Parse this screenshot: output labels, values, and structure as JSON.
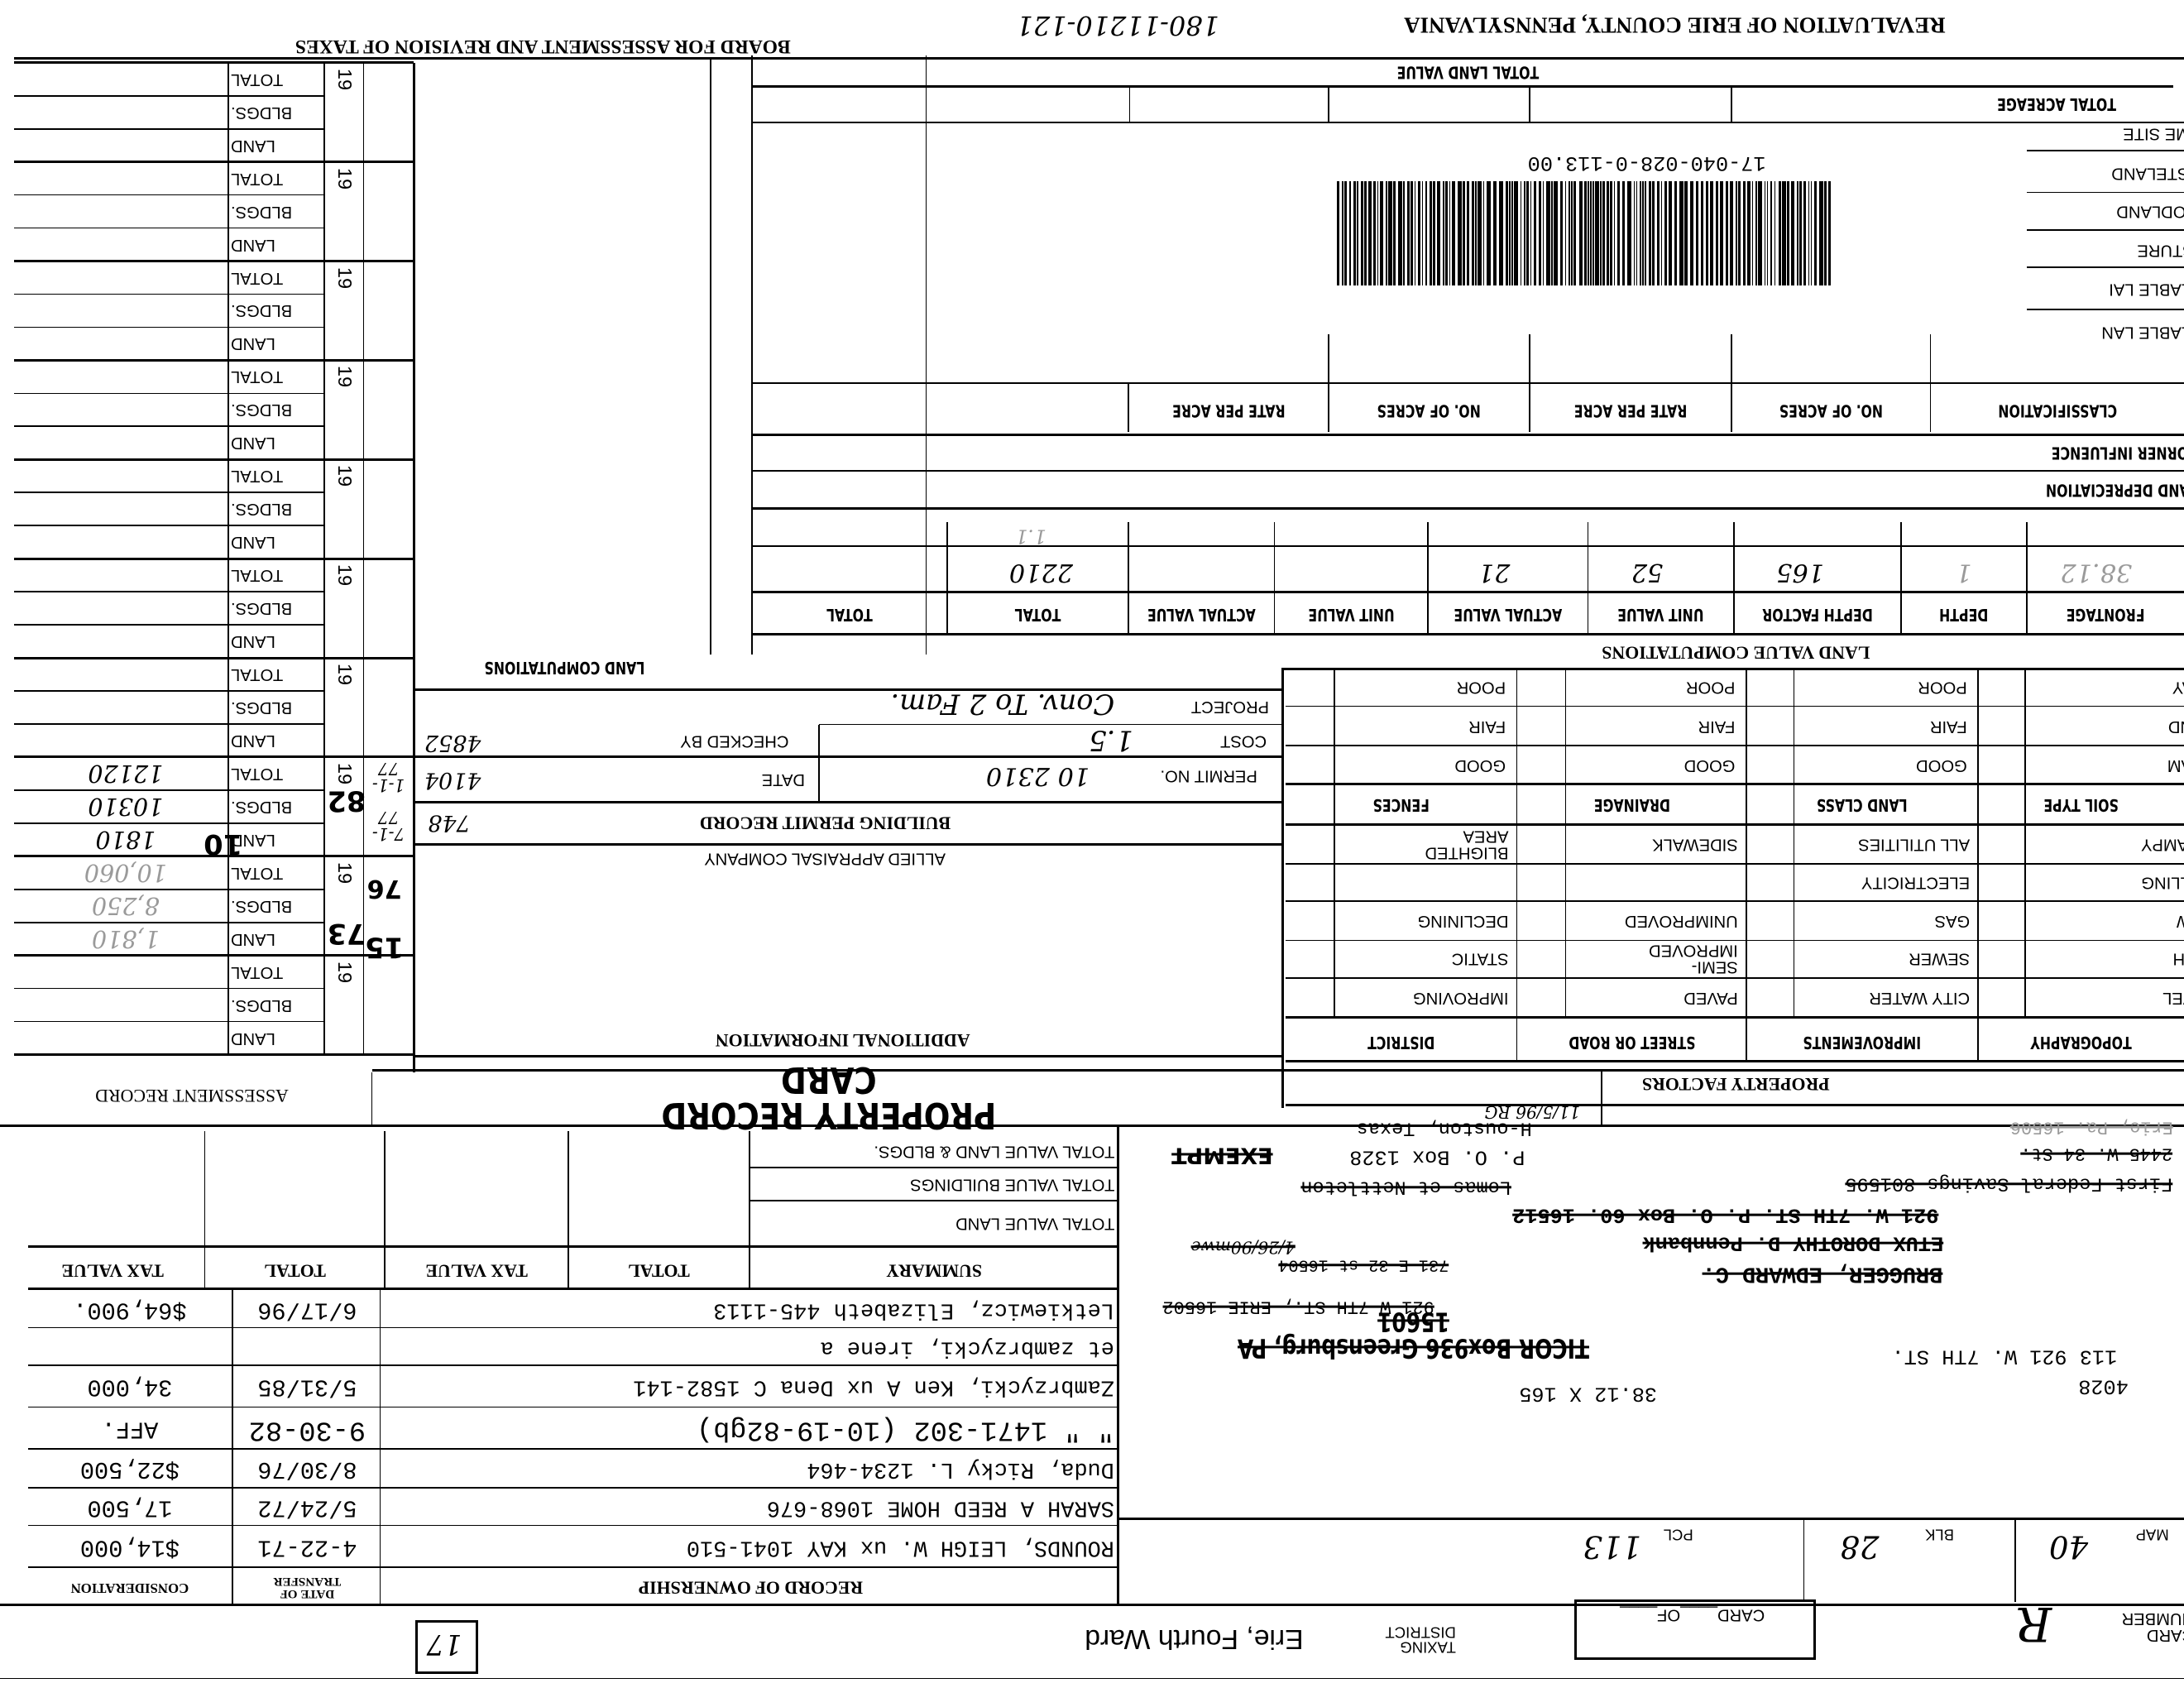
{
  "header": {
    "county_title": "REVALUATION OF ERIE COUNTY, PENNSYLVANIA",
    "handwritten_parcel": "180-11210-121",
    "board_title": "BOARD FOR ASSESSMENT AND REVISION OF TAXES"
  },
  "land_table": {
    "total_land_value": "TOTAL LAND VALUE",
    "total_acreage": "TOTAL ACREAGE",
    "land_uses": [
      "HOME SITE",
      "WASTELAND",
      "WOODLAND",
      "PASTURE",
      "TILLABLE LAI",
      "TILLABLE LAN"
    ],
    "barcode_number": "17-040-028-0-113.00",
    "columns": [
      "CLASSIFICATION",
      "NO. OF ACRES",
      "RATE PER ACRE",
      "NO. OF ACRES",
      "RATE PER ACRE"
    ],
    "corner_influence": "CORNER INFLUENCE",
    "land_depreciation": "LAND DEPRECIATION"
  },
  "land_value": {
    "title": "LAND VALUE COMPUTATIONS",
    "columns": [
      "FRONTAGE",
      "DEPTH",
      "DEPTH FACTOR",
      "UNIT VALUE",
      "ACTUAL VALUE",
      "UNIT VALUE",
      "ACTUAL VALUE",
      "TOTAL",
      "TOTAL"
    ],
    "values": {
      "frontage": "38.12",
      "depth": "1",
      "depth_factor": "165",
      "unit_value": "52",
      "actual_value": "21",
      "total": "2210",
      "total_note": "1.1"
    }
  },
  "assessment": {
    "title": "ASSESSMENT RECORD",
    "labels": [
      "TOTAL",
      "BLDGS.",
      "LAND"
    ],
    "blocks": [
      {
        "year": "19",
        "total": "",
        "bldgs": "",
        "land": ""
      },
      {
        "year": "19",
        "total": "",
        "bldgs": "",
        "land": ""
      },
      {
        "year": "19",
        "total": "",
        "bldgs": "",
        "land": ""
      },
      {
        "year": "19",
        "total": "",
        "bldgs": "",
        "land": ""
      },
      {
        "year": "19",
        "total": "",
        "bldgs": "",
        "land": ""
      },
      {
        "year": "19",
        "total": "",
        "bldgs": "",
        "land": ""
      },
      {
        "year": "19",
        "total": "",
        "bldgs": "",
        "land": ""
      },
      {
        "year": "19",
        "total": "12120",
        "bldgs": "10310",
        "land": "1810"
      },
      {
        "year": "19",
        "total": "10,060",
        "bldgs": "8,250",
        "land": "1,810"
      },
      {
        "year": "19",
        "total": "",
        "bldgs": "",
        "land": ""
      }
    ],
    "stamps": [
      "82",
      "10",
      "73",
      "76",
      "15"
    ],
    "margin_notes": [
      "1-1-77",
      "7-1-77"
    ]
  },
  "land_computations": "LAND COMPUTATIONS",
  "building_permit": {
    "title": "BUILDING PERMIT RECORD",
    "permit_no_label": "PERMIT NO.",
    "permit_no": "10 2310",
    "date_label": "DATE",
    "date": "4104",
    "cost_label": "COST",
    "cost": "1.5",
    "checked_by_label": "CHECKED BY",
    "checked_by": "4852",
    "project_label": "PROJECT",
    "project": "Conv. To 2 Fam.",
    "note": "748",
    "company": "ALLIED APPRAISAL COMPANY"
  },
  "additional_information": "ADDITIONAL INFORMATION",
  "card_title": "PROPERTY RECORD CARD",
  "review_note": "11/5/96 RG",
  "property_factors": {
    "title": "PROPERTY FACTORS",
    "headers_top": [
      "SOIL TYPE",
      "LAND CLASS",
      "DRAINAGE",
      "FENCES"
    ],
    "soil": [
      "CLAY",
      "SAND",
      "LOAM"
    ],
    "ratings": [
      "POOR",
      "FAIR",
      "GOOD"
    ],
    "headers_bottom": [
      "TOPOGRAPHY",
      "IMPROVEMENTS",
      "STREET OR ROAD",
      "DISTRICT"
    ],
    "topography": [
      "SWAMPY",
      "ROLLING",
      "LOW",
      "HIGH",
      "LEVEL"
    ],
    "improvements": [
      "ALL UTILITIES",
      "ELECTRICITY",
      "GAS",
      "SEWER",
      "CITY WATER"
    ],
    "street": [
      "SIDEWALK",
      "",
      "UNIMPROVED",
      "SEMI-\nIMPROVED",
      "PAVED"
    ],
    "district": [
      "BLIGHTED\nAREA",
      "",
      "DECLINING",
      "STATIC",
      "IMPROVING"
    ]
  },
  "summary": {
    "labels": [
      "TOTAL VALUE LAND & BLDGS.",
      "TOTAL VALUE BUILDINGS",
      "TOTAL VALUE LAND"
    ],
    "headers": [
      "SUMMARY",
      "TOTAL",
      "TAX VALUE",
      "TOTAL",
      "TAX VALUE"
    ]
  },
  "ownership": {
    "title": "RECORD OF OWNERSHIP",
    "date_header": "DATE OF\nTRANSFER",
    "consideration_header": "CONSIDERATION",
    "rows": [
      {
        "name": "Letkiewicz, Elizabeth     445-1113",
        "date": "6/17/96",
        "consideration": "$64,900."
      },
      {
        "name": "et zambrzycki, irene a",
        "date": "",
        "consideration": ""
      },
      {
        "name": "Zambrzycki, Ken A ux Dena C 1582-141",
        "date": "5/31/85",
        "consideration": "34,000"
      },
      {
        "name": "\"    \"   1471-302 (10-19-82gb)",
        "date": "9-30-82",
        "consideration": "AFF."
      },
      {
        "name": "Duda, Ricky L.   1234-464",
        "date": "8/30/76",
        "consideration": "$22,500"
      },
      {
        "name": "SARAH A REED HOME   1068-676",
        "date": "5/24/72",
        "consideration": "17,500"
      },
      {
        "name": "ROUNDS, LEIGH W. ux KAY   1041-510",
        "date": "4-22-71",
        "consideration": "$14,000"
      }
    ]
  },
  "owner_info": {
    "lines": [
      "Erie, Pa.  16506",
      "2445 W. 34 St.",
      "First Federal Savings  801595",
      "H-ouston, Texas",
      "P. O. Box 1328",
      "EXEMPT",
      "Lomas et Nettleton",
      "921 W. 7TH ST.  P. O. Box 60.  16512",
      "ETUX DOROTHY D. Pennbank",
      "BRUGGER, EDWARD C.",
      "731 E 32 st  16504",
      "4/26/90mwe",
      "921 W 7TH ST., ERIE 16502",
      "TICOR Box936 Greensburg, PA 15601"
    ],
    "property_address": "113    921 W. 7TH ST.",
    "code": "4028",
    "lot_size": "38.12 X 165"
  },
  "footer": {
    "map_label": "MAP",
    "map": "40",
    "blk_label": "BLK",
    "blk": "28",
    "pcl_label": "PCL",
    "pcl": "113",
    "card_number_label": "CARD\nNUMBER",
    "card_number": "R",
    "card_of": "CARD____OF____",
    "taxing_label": "TAXING\nDISTRICT",
    "taxing_district": "Erie, Fourth Ward",
    "box_number": "17"
  }
}
